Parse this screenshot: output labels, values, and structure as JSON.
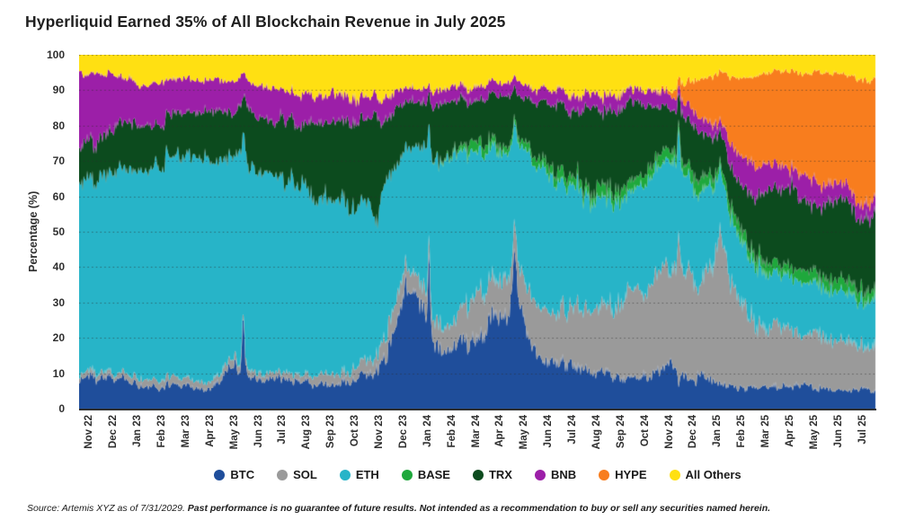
{
  "title": "Hyperliquid Earned 35% of All Blockchain Revenue in July 2025",
  "y_axis": {
    "label": "Percentage (%)",
    "min": 0,
    "max": 100,
    "step": 10
  },
  "footer": {
    "source": "Source: Artemis XYZ as of 7/31/2029.",
    "disclaimer": "Past performance is no guarantee of future results. Not intended as a recommendation to buy or sell any securities named herein."
  },
  "legend": [
    {
      "label": "BTC",
      "color": "#1f4e9b"
    },
    {
      "label": "SOL",
      "color": "#9a9a9a"
    },
    {
      "label": "ETH",
      "color": "#27b4c8"
    },
    {
      "label": "BASE",
      "color": "#1fa83c"
    },
    {
      "label": "TRX",
      "color": "#0c4b1e"
    },
    {
      "label": "BNB",
      "color": "#9c1fa8"
    },
    {
      "label": "HYPE",
      "color": "#f87d1e"
    },
    {
      "label": "All Others",
      "color": "#ffe012"
    }
  ],
  "chart_data": {
    "type": "area",
    "stacking": "percent",
    "title": "Hyperliquid Earned 35% of All Blockchain Revenue in July 2025",
    "xlabel": "",
    "ylabel": "Percentage (%)",
    "ylim": [
      0,
      100
    ],
    "grid": "dotted-horizontal",
    "legend_position": "bottom",
    "x": [
      "Nov 22",
      "Dec 22",
      "Jan 23",
      "Feb 23",
      "Mar 23",
      "Apr 23",
      "May 23",
      "Jun 23",
      "Jul 23",
      "Aug 23",
      "Sep 23",
      "Oct 23",
      "Nov 23",
      "Dec 23",
      "Jan 24",
      "Feb 24",
      "Mar 24",
      "Apr 24",
      "May 24",
      "Jun 24",
      "Jul 24",
      "Aug 24",
      "Sep 24",
      "Oct 24",
      "Nov 24",
      "Dec 24",
      "Jan 25",
      "Feb 25",
      "Mar 25",
      "Apr 25",
      "May 25",
      "Jun 25",
      "Jul 25"
    ],
    "series": [
      {
        "name": "BTC",
        "color": "#1f4e9b",
        "values": [
          10,
          8,
          7,
          6,
          6,
          6,
          12,
          8,
          8,
          7,
          7,
          8,
          14,
          28,
          20,
          15,
          21,
          28,
          17,
          14,
          12,
          10,
          8,
          10,
          11,
          8,
          8,
          6,
          6,
          6,
          6,
          5,
          5
        ]
      },
      {
        "name": "SOL",
        "color": "#9a9a9a",
        "values": [
          1.5,
          1.5,
          2,
          2,
          2,
          2,
          2,
          2,
          2,
          2,
          3,
          3,
          5,
          8,
          7,
          7,
          12,
          11,
          14,
          15,
          17,
          20,
          22,
          25,
          30,
          28,
          34,
          24,
          18,
          15,
          15,
          14,
          13
        ]
      },
      {
        "name": "ETH",
        "color": "#27b4c8",
        "values": [
          52.5,
          56.5,
          59,
          61,
          62,
          62,
          57,
          57,
          54,
          53,
          49,
          44,
          44,
          36,
          44,
          49,
          40,
          35,
          40,
          36,
          34,
          30,
          28,
          30,
          30,
          27,
          20,
          17,
          15,
          15,
          14,
          14,
          13
        ]
      },
      {
        "name": "BASE",
        "color": "#1fa83c",
        "values": [
          0,
          0,
          0,
          0,
          0,
          0,
          0,
          0,
          0,
          0,
          0,
          0,
          0,
          0,
          0,
          1,
          3,
          2,
          2,
          3,
          3,
          3,
          3,
          3,
          3,
          4,
          3,
          3,
          3,
          3,
          3,
          3,
          3
        ]
      },
      {
        "name": "TRX",
        "color": "#0c4b1e",
        "values": [
          11,
          12,
          13,
          12,
          13,
          14,
          13,
          16,
          17,
          19,
          21,
          25,
          19,
          14,
          15,
          14,
          12,
          13,
          14,
          18,
          19,
          22,
          24,
          18,
          12,
          13,
          10,
          13,
          20,
          22,
          20,
          22,
          20
        ]
      },
      {
        "name": "BNB",
        "color": "#9c1fa8",
        "values": [
          20,
          16,
          11,
          11,
          10,
          9,
          9,
          9,
          9,
          8,
          8,
          7,
          6,
          5,
          4,
          4,
          4,
          4,
          4,
          4,
          4,
          4,
          4,
          4,
          4,
          4,
          4,
          8,
          8,
          6,
          7,
          5,
          4
        ]
      },
      {
        "name": "HYPE",
        "color": "#f87d1e",
        "values": [
          0,
          0,
          0,
          0,
          0,
          0,
          0,
          0,
          0,
          0,
          0,
          0,
          0,
          0,
          0,
          0,
          0,
          0,
          0,
          0,
          0,
          0,
          0,
          0,
          1,
          9,
          15,
          23,
          25,
          28,
          30,
          32,
          35
        ]
      },
      {
        "name": "All Others",
        "color": "#ffe012",
        "values": [
          5,
          6,
          8,
          8,
          7,
          7,
          7,
          8,
          10,
          11,
          12,
          13,
          12,
          9,
          10,
          10,
          8,
          7,
          9,
          10,
          11,
          11,
          11,
          10,
          9,
          7,
          6,
          6,
          5,
          5,
          5,
          5,
          7
        ]
      }
    ],
    "spikes": [
      {
        "series": "BTC",
        "center": 6.3,
        "add": 26,
        "width": 0.06
      },
      {
        "series": "ETH",
        "center": 6.3,
        "add": 14,
        "width": 0.06
      },
      {
        "series": "TRX",
        "center": 11.8,
        "add": 14,
        "width": 0.15
      },
      {
        "series": "BTC",
        "center": 13.4,
        "add": 14,
        "width": 0.5
      },
      {
        "series": "BTC",
        "center": 14.0,
        "add": 40,
        "width": 0.05
      },
      {
        "series": "BTC",
        "center": 17.55,
        "add": 32,
        "width": 0.1
      },
      {
        "series": "BTC",
        "center": 17.8,
        "add": 12,
        "width": 0.35
      },
      {
        "series": "SOL",
        "center": 24.35,
        "add": 42,
        "width": 0.05
      },
      {
        "series": "ETH",
        "center": 24.35,
        "add": 20,
        "width": 0.05
      },
      {
        "series": "SOL",
        "center": 26.15,
        "add": 14,
        "width": 0.25
      }
    ],
    "noise": {
      "seed": 1337,
      "amplitudes": {
        "BTC": 0.3,
        "SOL": 0.3,
        "ETH": 0.07,
        "BASE": 0.35,
        "TRX": 0.22,
        "BNB": 0.28,
        "HYPE": 0.1,
        "All Others": 0.25
      }
    }
  }
}
